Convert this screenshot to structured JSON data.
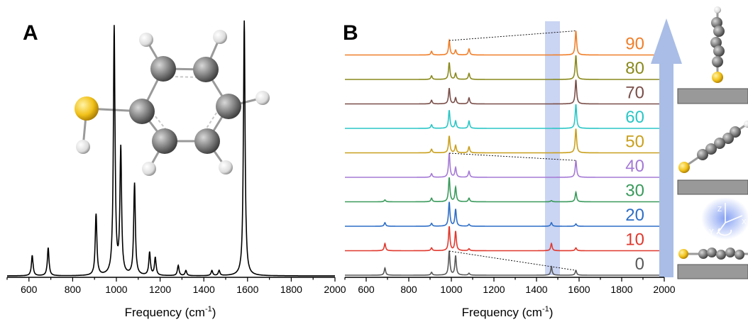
{
  "colors": {
    "panel_a_line": "#000000",
    "axis": "#000000",
    "highlight_band": "#b8c6ef",
    "arrow": "#a9bde6",
    "sulfur": "#f2c21a",
    "carbon": "#7a7a7a",
    "hydrogen": "#e8e8e8",
    "surface": "#999999"
  },
  "panels": {
    "a": {
      "label": "A"
    },
    "b": {
      "label": "B"
    }
  },
  "axis_label": {
    "prefix": "Frequency (cm",
    "sup": "-1",
    "suffix": ")"
  },
  "axes_inset_labels": {
    "z": "Z",
    "y": "Y",
    "x": "X"
  },
  "chart_data": [
    {
      "type": "line",
      "panel": "A",
      "title": "",
      "xlabel": "Frequency (cm-1)",
      "ylabel": "",
      "xlim": [
        500,
        2000
      ],
      "xticks": [
        600,
        800,
        1000,
        1200,
        1400,
        1600,
        1800,
        2000
      ],
      "peaks": [
        {
          "x": 615,
          "y": 0.08
        },
        {
          "x": 688,
          "y": 0.11
        },
        {
          "x": 907,
          "y": 0.24
        },
        {
          "x": 990,
          "y": 0.97
        },
        {
          "x": 1020,
          "y": 0.49
        },
        {
          "x": 1083,
          "y": 0.36
        },
        {
          "x": 1152,
          "y": 0.09
        },
        {
          "x": 1178,
          "y": 0.07
        },
        {
          "x": 1283,
          "y": 0.04
        },
        {
          "x": 1318,
          "y": 0.02
        },
        {
          "x": 1437,
          "y": 0.02
        },
        {
          "x": 1470,
          "y": 0.02
        },
        {
          "x": 1585,
          "y": 1.0
        }
      ]
    },
    {
      "type": "line",
      "panel": "B",
      "title": "",
      "xlabel": "Frequency (cm-1)",
      "ylabel": "",
      "xlim": [
        500,
        2000
      ],
      "xticks": [
        600,
        800,
        1000,
        1200,
        1400,
        1600,
        1800,
        2000
      ],
      "highlight_band": [
        1440,
        1510
      ],
      "series": [
        {
          "name": "0",
          "color": "#595959",
          "peaks": [
            {
              "x": 688,
              "y": 0.3
            },
            {
              "x": 907,
              "y": 0.12
            },
            {
              "x": 990,
              "y": 1.0
            },
            {
              "x": 1020,
              "y": 0.8
            },
            {
              "x": 1083,
              "y": 0.08
            },
            {
              "x": 1470,
              "y": 0.35
            },
            {
              "x": 1585,
              "y": 0.2
            }
          ]
        },
        {
          "name": "10",
          "color": "#e0392e",
          "peaks": [
            {
              "x": 688,
              "y": 0.3
            },
            {
              "x": 907,
              "y": 0.12
            },
            {
              "x": 990,
              "y": 1.0
            },
            {
              "x": 1020,
              "y": 0.8
            },
            {
              "x": 1083,
              "y": 0.08
            },
            {
              "x": 1470,
              "y": 0.3
            },
            {
              "x": 1585,
              "y": 0.12
            }
          ]
        },
        {
          "name": "20",
          "color": "#2f6fc7",
          "peaks": [
            {
              "x": 688,
              "y": 0.15
            },
            {
              "x": 907,
              "y": 0.12
            },
            {
              "x": 990,
              "y": 1.0
            },
            {
              "x": 1020,
              "y": 0.7
            },
            {
              "x": 1083,
              "y": 0.08
            },
            {
              "x": 1470,
              "y": 0.15
            },
            {
              "x": 1585,
              "y": 0.1
            }
          ]
        },
        {
          "name": "30",
          "color": "#3a9a5c",
          "peaks": [
            {
              "x": 688,
              "y": 0.08
            },
            {
              "x": 907,
              "y": 0.15
            },
            {
              "x": 990,
              "y": 1.0
            },
            {
              "x": 1020,
              "y": 0.6
            },
            {
              "x": 1083,
              "y": 0.15
            },
            {
              "x": 1470,
              "y": 0.05
            },
            {
              "x": 1585,
              "y": 0.4
            }
          ]
        },
        {
          "name": "40",
          "color": "#a57ad6",
          "peaks": [
            {
              "x": 907,
              "y": 0.15
            },
            {
              "x": 990,
              "y": 1.0
            },
            {
              "x": 1020,
              "y": 0.4
            },
            {
              "x": 1083,
              "y": 0.25
            },
            {
              "x": 1585,
              "y": 0.7
            }
          ]
        },
        {
          "name": "50",
          "color": "#c9a01e",
          "peaks": [
            {
              "x": 907,
              "y": 0.15
            },
            {
              "x": 990,
              "y": 0.7
            },
            {
              "x": 1020,
              "y": 0.3
            },
            {
              "x": 1083,
              "y": 0.25
            },
            {
              "x": 1585,
              "y": 1.0
            }
          ]
        },
        {
          "name": "60",
          "color": "#2bc6c6",
          "peaks": [
            {
              "x": 907,
              "y": 0.15
            },
            {
              "x": 990,
              "y": 0.75
            },
            {
              "x": 1020,
              "y": 0.3
            },
            {
              "x": 1083,
              "y": 0.3
            },
            {
              "x": 1585,
              "y": 1.0
            }
          ]
        },
        {
          "name": "70",
          "color": "#7a4f4a",
          "peaks": [
            {
              "x": 907,
              "y": 0.15
            },
            {
              "x": 990,
              "y": 0.65
            },
            {
              "x": 1020,
              "y": 0.25
            },
            {
              "x": 1083,
              "y": 0.25
            },
            {
              "x": 1585,
              "y": 1.0
            }
          ]
        },
        {
          "name": "80",
          "color": "#8a8a1e",
          "peaks": [
            {
              "x": 907,
              "y": 0.15
            },
            {
              "x": 990,
              "y": 0.7
            },
            {
              "x": 1020,
              "y": 0.25
            },
            {
              "x": 1083,
              "y": 0.25
            },
            {
              "x": 1585,
              "y": 1.0
            }
          ]
        },
        {
          "name": "90",
          "color": "#f07f2a",
          "peaks": [
            {
              "x": 907,
              "y": 0.15
            },
            {
              "x": 990,
              "y": 0.6
            },
            {
              "x": 1020,
              "y": 0.2
            },
            {
              "x": 1083,
              "y": 0.25
            },
            {
              "x": 1585,
              "y": 1.0
            }
          ]
        }
      ]
    }
  ]
}
